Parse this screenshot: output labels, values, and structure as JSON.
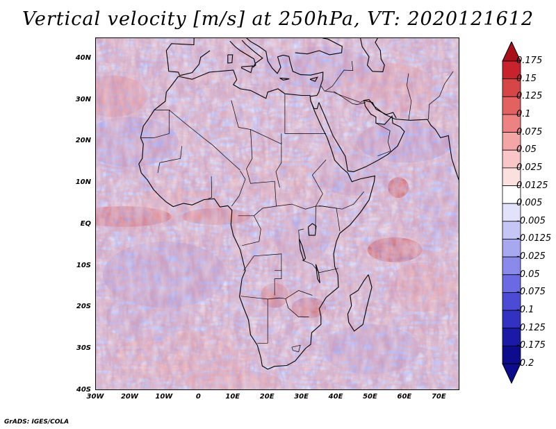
{
  "title": "Vertical velocity [m/s] at 250hPa, VT: 2020121612",
  "credit": "GrADS: IGES/COLA",
  "map": {
    "projection": "lat-lon",
    "lon_range": [
      -30,
      76
    ],
    "lat_range": [
      -40,
      45
    ],
    "lat_ticks": [
      "40N",
      "30N",
      "20N",
      "10N",
      "EQ",
      "10S",
      "20S",
      "30S",
      "40S"
    ],
    "lat_tick_values": [
      40,
      30,
      20,
      10,
      0,
      -10,
      -20,
      -30,
      -40
    ],
    "lon_ticks": [
      "30W",
      "20W",
      "10W",
      "0",
      "10E",
      "20E",
      "30E",
      "40E",
      "50E",
      "60E",
      "70E"
    ],
    "lon_tick_values": [
      -30,
      -20,
      -10,
      0,
      10,
      20,
      30,
      40,
      50,
      60,
      70
    ]
  },
  "colorbar": {
    "labels": [
      "0.175",
      "0.15",
      "0.125",
      "0.1",
      "0.075",
      "0.05",
      "0.025",
      "0.0125",
      "0.005",
      "-0.005",
      "-0.0125",
      "-0.025",
      "-0.05",
      "-0.075",
      "-0.1",
      "-0.125",
      "-0.175",
      "-0.2"
    ],
    "colors": [
      "#a80f19",
      "#c8232d",
      "#d64646",
      "#e26262",
      "#ec8282",
      "#f4a6a6",
      "#f8c6c6",
      "#fbe0e0",
      "#ffffff",
      "#e2e2fa",
      "#c6c6f6",
      "#a8a8f0",
      "#8a8aea",
      "#6a6ae2",
      "#4b4bd6",
      "#3232c2",
      "#1a1aa6",
      "#0c0c8c"
    ]
  },
  "chart_data": {
    "type": "heatmap",
    "title": "Vertical velocity [m/s] at 250hPa, VT: 2020121612",
    "variable": "Vertical velocity",
    "units": "m/s",
    "level": "250hPa",
    "valid_time": "2020121612",
    "xlabel": "",
    "ylabel": "",
    "xlim": [
      -30,
      76
    ],
    "ylim": [
      -40,
      45
    ],
    "contour_levels": [
      -0.2,
      -0.175,
      -0.125,
      -0.1,
      -0.075,
      -0.05,
      -0.025,
      -0.0125,
      -0.005,
      0.005,
      0.0125,
      0.025,
      0.05,
      0.075,
      0.1,
      0.125,
      0.15,
      0.175
    ]
  }
}
